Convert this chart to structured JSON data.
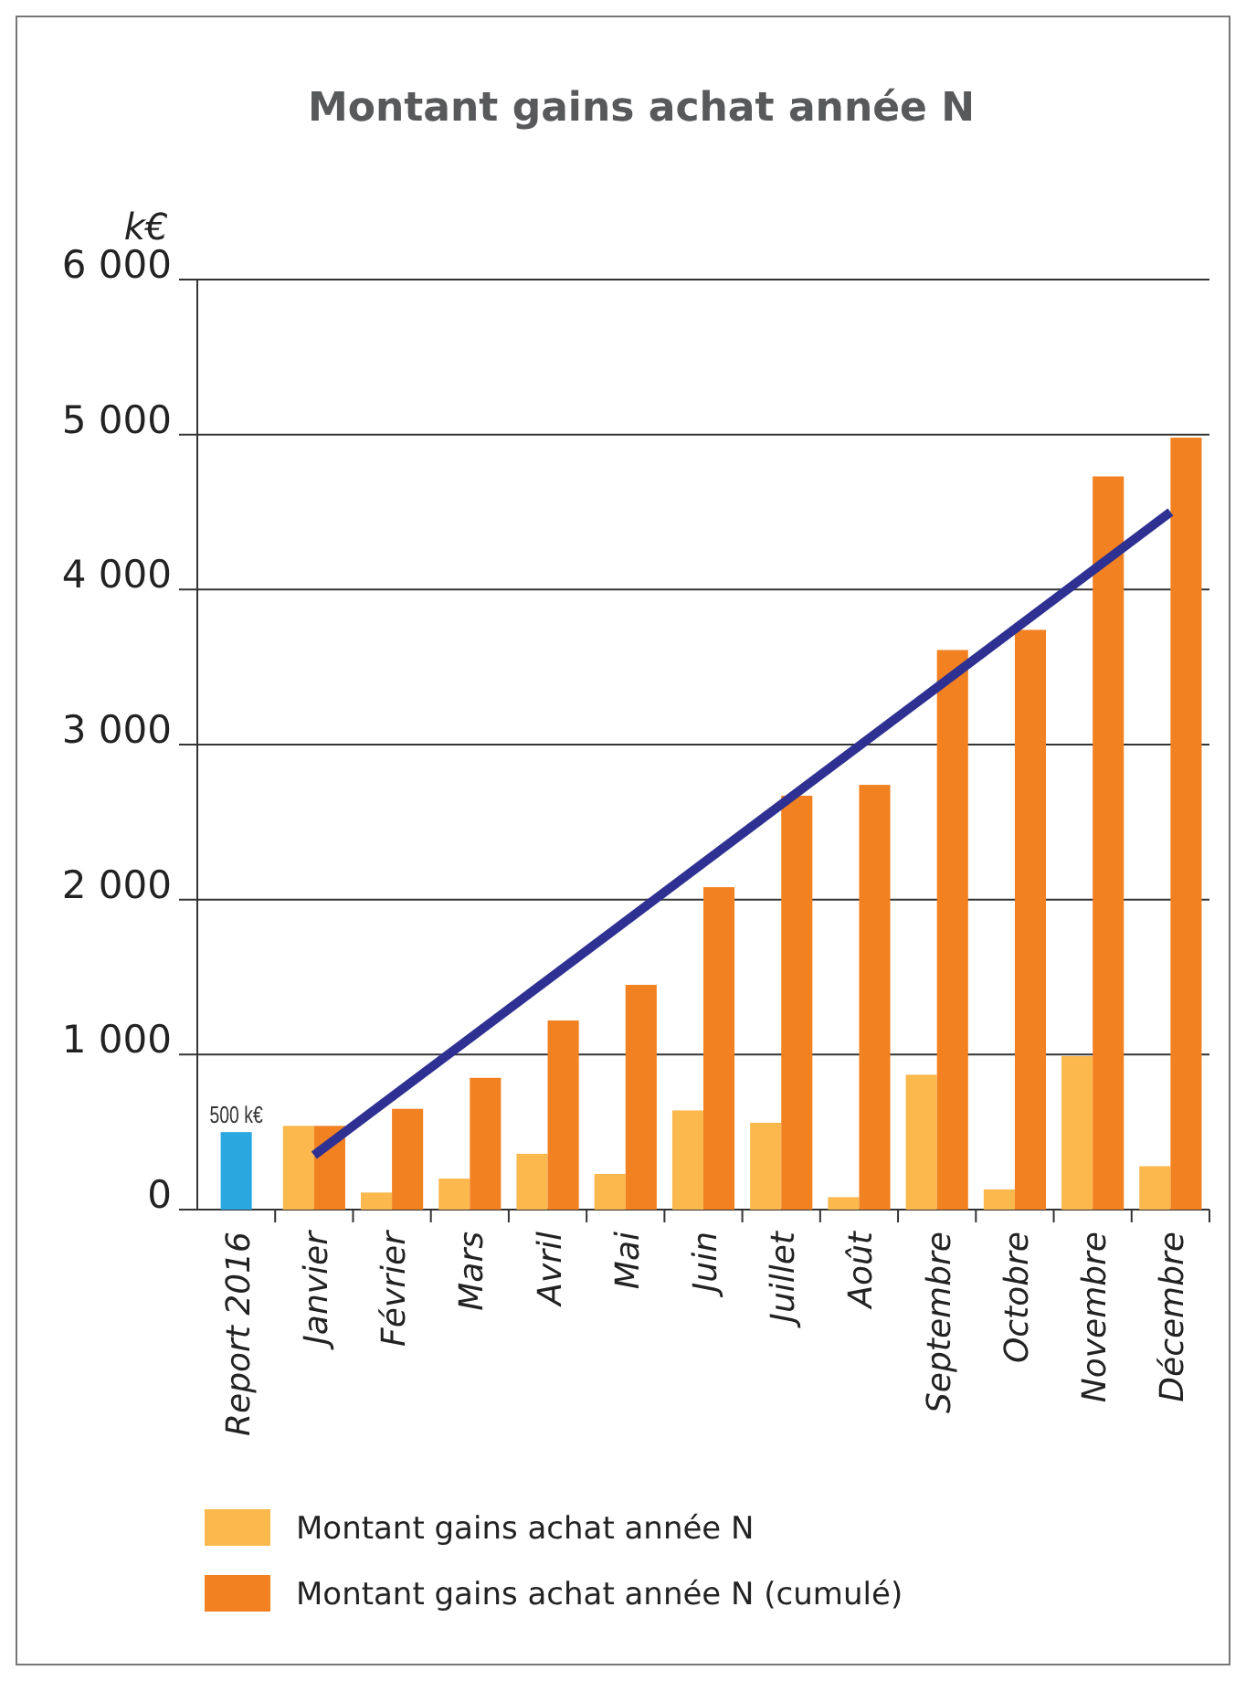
{
  "chart_data": {
    "type": "bar",
    "title": "Montant gains achat année N",
    "ylabel": "k€",
    "categories": [
      "Report 2016",
      "Janvier",
      "Février",
      "Mars",
      "Avril",
      "Mai",
      "Juin",
      "Juillet",
      "Août",
      "Septembre",
      "Octobre",
      "Novembre",
      "Décembre"
    ],
    "series": [
      {
        "color": "#29a8e0",
        "values": [
          500,
          null,
          null,
          null,
          null,
          null,
          null,
          null,
          null,
          null,
          null,
          null,
          null
        ],
        "value_labels": [
          "500 k€",
          null,
          null,
          null,
          null,
          null,
          null,
          null,
          null,
          null,
          null,
          null,
          null
        ]
      },
      {
        "name": "Montant gains achat année N",
        "color": "#fbb84d",
        "values": [
          null,
          540,
          110,
          200,
          360,
          230,
          640,
          560,
          80,
          870,
          130,
          990,
          280
        ]
      },
      {
        "name": "Montant gains achat année N (cumulé)",
        "color": "#f28121",
        "values": [
          null,
          540,
          650,
          850,
          1220,
          1450,
          2080,
          2670,
          2740,
          3610,
          3740,
          4730,
          4980
        ]
      },
      {
        "type": "line",
        "color": "#2e3192",
        "x": [
          "Janvier",
          "Décembre"
        ],
        "values": [
          350,
          4500
        ]
      }
    ],
    "ylim": [
      0,
      6000
    ],
    "yticks": [
      {
        "value": 0,
        "label": "0"
      },
      {
        "value": 1000,
        "label": "1 000"
      },
      {
        "value": 2000,
        "label": "2 000"
      },
      {
        "value": 3000,
        "label": "3 000"
      },
      {
        "value": 4000,
        "label": "4 000"
      },
      {
        "value": 5000,
        "label": "5 000"
      },
      {
        "value": 6000,
        "label": "6 000"
      }
    ],
    "grid": "y",
    "legend": "bottom"
  }
}
